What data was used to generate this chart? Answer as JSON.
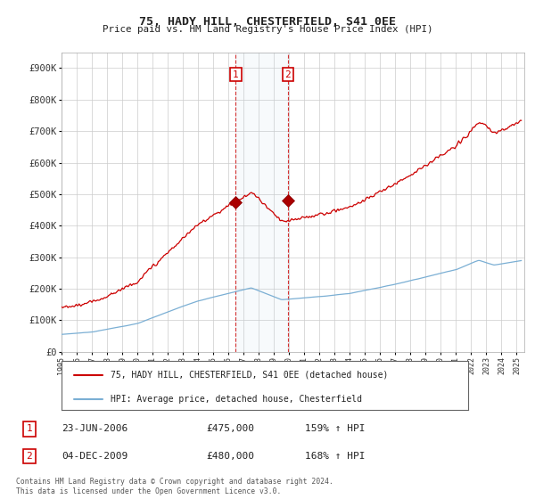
{
  "title": "75, HADY HILL, CHESTERFIELD, S41 0EE",
  "subtitle": "Price paid vs. HM Land Registry's House Price Index (HPI)",
  "yticks": [
    0,
    100000,
    200000,
    300000,
    400000,
    500000,
    600000,
    700000,
    800000,
    900000
  ],
  "ytick_labels": [
    "£0",
    "£100K",
    "£200K",
    "£300K",
    "£400K",
    "£500K",
    "£600K",
    "£700K",
    "£800K",
    "£900K"
  ],
  "xlim_start": 1995.0,
  "xlim_end": 2025.5,
  "ylim_min": 0,
  "ylim_max": 950000,
  "hpi_color": "#7bafd4",
  "price_color": "#cc0000",
  "background_color": "#ffffff",
  "grid_color": "#cccccc",
  "sale1_date": 2006.48,
  "sale1_price": 475000,
  "sale2_date": 2009.92,
  "sale2_price": 480000,
  "legend_line1": "75, HADY HILL, CHESTERFIELD, S41 0EE (detached house)",
  "legend_line2": "HPI: Average price, detached house, Chesterfield",
  "table_row1": [
    "1",
    "23-JUN-2006",
    "£475,000",
    "159% ↑ HPI"
  ],
  "table_row2": [
    "2",
    "04-DEC-2009",
    "£480,000",
    "168% ↑ HPI"
  ],
  "footnote": "Contains HM Land Registry data © Crown copyright and database right 2024.\nThis data is licensed under the Open Government Licence v3.0."
}
